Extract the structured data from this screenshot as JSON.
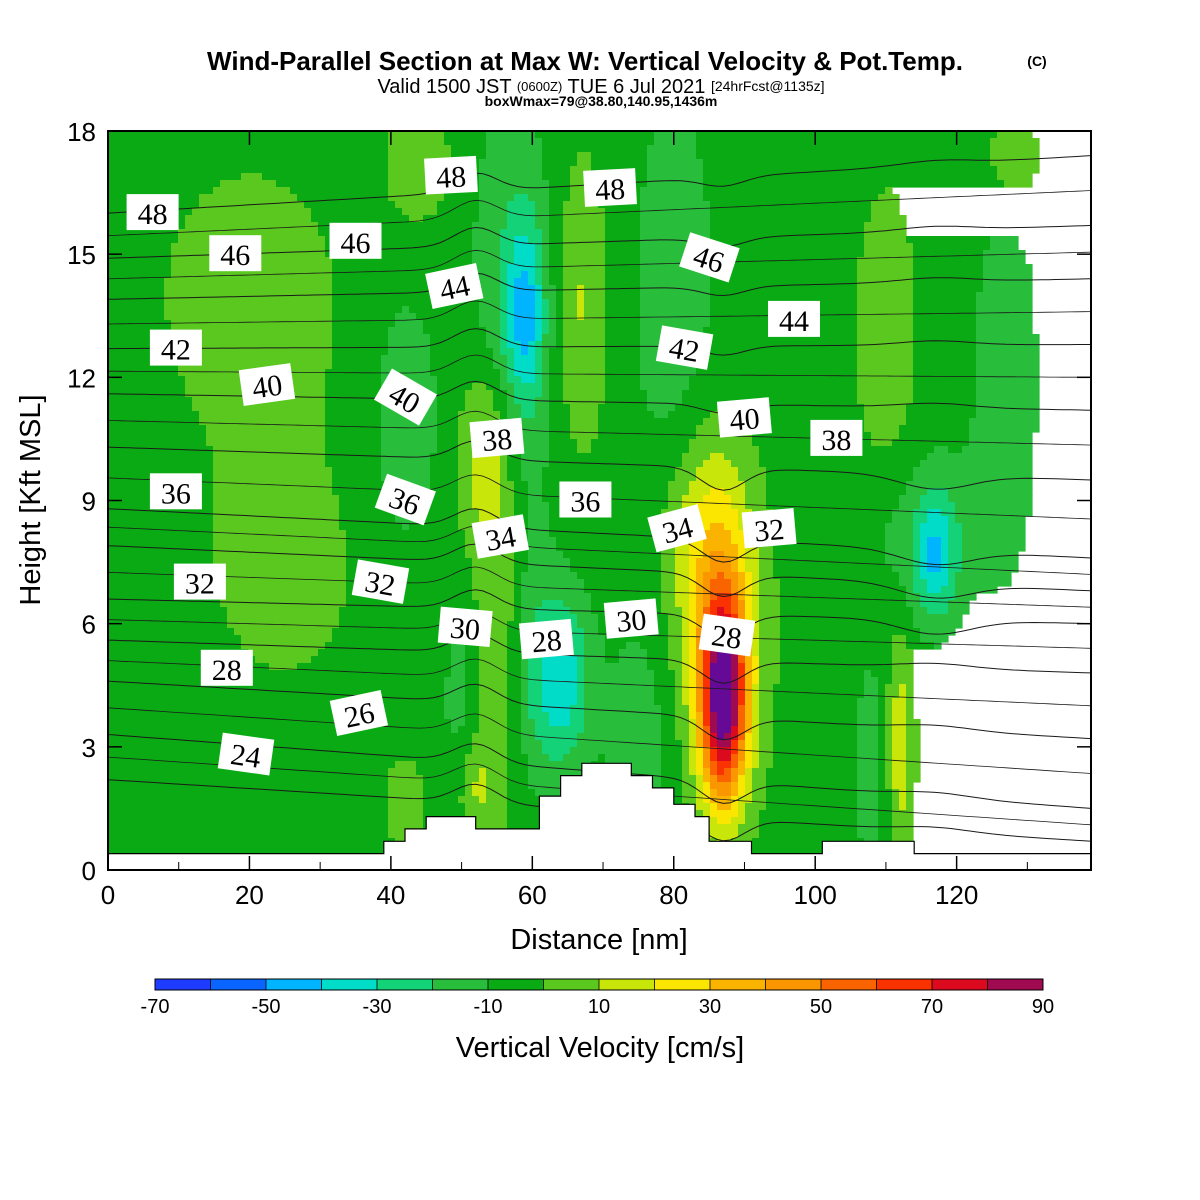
{
  "title_main": "Wind-Parallel Section at Max W: Vertical Velocity & Pot.Temp.",
  "title_mark": "(C)",
  "subtitle_pre": "Valid 1500 JST",
  "subtitle_utc": "(0600Z)",
  "subtitle_date": "TUE 6 Jul 2021",
  "subtitle_fcst": "[24hrFcst@1135z]",
  "subtitle_box": "boxWmax=79@38.80,140.95,1436m",
  "chart_data": {
    "type": "heatmap",
    "xlabel": "Distance [nm]",
    "ylabel": "Height [Kft MSL]",
    "xlim": [
      0,
      139
    ],
    "ylim": [
      0,
      18
    ],
    "xticks": [
      0,
      20,
      40,
      60,
      80,
      100,
      120
    ],
    "yticks": [
      0,
      3,
      6,
      9,
      12,
      15,
      18
    ],
    "colorbar": {
      "label": "Vertical Velocity [cm/s]",
      "levels": [
        -70,
        -60,
        -50,
        -40,
        -30,
        -20,
        -10,
        0,
        10,
        20,
        30,
        40,
        50,
        60,
        70,
        80,
        90
      ],
      "tick_labels": [
        "-70",
        "-50",
        "-30",
        "-10",
        "10",
        "30",
        "50",
        "70",
        "90"
      ],
      "colors": [
        "#1e3cff",
        "#0a64ff",
        "#00b4ff",
        "#00dcc8",
        "#14d278",
        "#28be3c",
        "#0aaa14",
        "#5ac81e",
        "#c8e60a",
        "#fae600",
        "#fab400",
        "#fa9600",
        "#fa6400",
        "#fa3200",
        "#dc0a1e",
        "#a00a50",
        "#640a96"
      ]
    },
    "background_value": -5,
    "w_features": [
      {
        "x": 87,
        "y": 4.2,
        "sx": 2.2,
        "sy": 1.7,
        "w": 88
      },
      {
        "x": 87,
        "y": 5.6,
        "sx": 4,
        "sy": 2.8,
        "w": 30
      },
      {
        "x": 84,
        "y": 8.2,
        "sx": 4,
        "sy": 1.8,
        "w": 18
      },
      {
        "x": 56,
        "y": 6.5,
        "sx": 3,
        "sy": 3.5,
        "w": 18
      },
      {
        "x": 53,
        "y": 10,
        "sx": 2.5,
        "sy": 1.5,
        "w": 18
      },
      {
        "x": 52,
        "y": 2,
        "sx": 2,
        "sy": 1,
        "w": 16
      },
      {
        "x": 67,
        "y": 13.8,
        "sx": 2.5,
        "sy": 2.5,
        "w": 16
      },
      {
        "x": 112,
        "y": 3,
        "sx": 1.4,
        "sy": 2,
        "w": 22
      },
      {
        "x": 110,
        "y": 13,
        "sx": 3,
        "sy": 2.5,
        "w": 14
      },
      {
        "x": 44,
        "y": 17.3,
        "sx": 3,
        "sy": 1,
        "w": 14
      },
      {
        "x": 128,
        "y": 17.3,
        "sx": 3,
        "sy": 1,
        "w": 12
      },
      {
        "x": 42,
        "y": 1.6,
        "sx": 2,
        "sy": 0.8,
        "w": 12
      },
      {
        "x": 20,
        "y": 14,
        "sx": 12,
        "sy": 3,
        "w": 8
      },
      {
        "x": 25,
        "y": 7,
        "sx": 10,
        "sy": 2.5,
        "w": 7
      },
      {
        "x": 64,
        "y": 4.6,
        "sx": 3,
        "sy": 1.5,
        "w": -32
      },
      {
        "x": 59,
        "y": 6,
        "sx": 2.5,
        "sy": 3,
        "w": -14
      },
      {
        "x": 59,
        "y": 13.5,
        "sx": 2,
        "sy": 1.6,
        "w": -30
      },
      {
        "x": 57,
        "y": 14,
        "sx": 4,
        "sy": 3.5,
        "w": -14
      },
      {
        "x": 42,
        "y": 11,
        "sx": 3,
        "sy": 2,
        "w": -16
      },
      {
        "x": 80,
        "y": 14,
        "sx": 4,
        "sy": 3.5,
        "w": -12
      },
      {
        "x": 117,
        "y": 7.6,
        "sx": 2,
        "sy": 1,
        "w": -28
      },
      {
        "x": 116,
        "y": 8.2,
        "sx": 6,
        "sy": 1.5,
        "w": -12
      },
      {
        "x": 127,
        "y": 12,
        "sx": 3,
        "sy": 3,
        "w": -14
      },
      {
        "x": 75,
        "y": 3,
        "sx": 3,
        "sy": 2,
        "w": -12
      },
      {
        "x": 50,
        "y": 4,
        "sx": 2,
        "sy": 2,
        "w": -10
      },
      {
        "x": 108,
        "y": 2.5,
        "sx": 2,
        "sy": 2,
        "w": -10
      }
    ],
    "theta_isentropes": [
      {
        "value": 24,
        "y_left": 2.2,
        "y_right": 0.7
      },
      {
        "value": 26,
        "y_left": 3.3,
        "y_right": 1.5
      },
      {
        "value": 28,
        "y_left": 4.6,
        "y_right": 3.2
      },
      {
        "value": 30,
        "y_left": 5.6,
        "y_right": 4.8
      },
      {
        "value": 32,
        "y_left": 6.6,
        "y_right": 6.0
      },
      {
        "value": 34,
        "y_left": 7.9,
        "y_right": 6.8
      },
      {
        "value": 36,
        "y_left": 8.8,
        "y_right": 7.6
      },
      {
        "value": 38,
        "y_left": 10.3,
        "y_right": 9.5
      },
      {
        "value": 40,
        "y_left": 11.6,
        "y_right": 11.2
      },
      {
        "value": 42,
        "y_left": 12.7,
        "y_right": 12.8
      },
      {
        "value": 44,
        "y_left": 13.9,
        "y_right": 14.4
      },
      {
        "value": 46,
        "y_left": 14.9,
        "y_right": 15.7
      },
      {
        "value": 48,
        "y_left": 16.0,
        "y_right": 17.4
      }
    ],
    "theta_labels": [
      {
        "text": "48",
        "x": 6.3,
        "y": 16.0,
        "rot": 0
      },
      {
        "text": "48",
        "x": 48.5,
        "y": 16.9,
        "rot": -3
      },
      {
        "text": "48",
        "x": 71,
        "y": 16.6,
        "rot": -3
      },
      {
        "text": "46",
        "x": 18,
        "y": 15.0,
        "rot": 0
      },
      {
        "text": "46",
        "x": 35,
        "y": 15.3,
        "rot": 0
      },
      {
        "text": "46",
        "x": 85,
        "y": 14.9,
        "rot": 18
      },
      {
        "text": "44",
        "x": 49,
        "y": 14.2,
        "rot": -12
      },
      {
        "text": "44",
        "x": 97,
        "y": 13.4,
        "rot": 0
      },
      {
        "text": "42",
        "x": 9.6,
        "y": 12.7,
        "rot": 0
      },
      {
        "text": "42",
        "x": 81.5,
        "y": 12.7,
        "rot": 10
      },
      {
        "text": "40",
        "x": 22.5,
        "y": 11.8,
        "rot": -8
      },
      {
        "text": "40",
        "x": 42,
        "y": 11.5,
        "rot": 30
      },
      {
        "text": "40",
        "x": 90,
        "y": 11.0,
        "rot": -5
      },
      {
        "text": "38",
        "x": 55,
        "y": 10.5,
        "rot": -5
      },
      {
        "text": "38",
        "x": 103,
        "y": 10.5,
        "rot": 0
      },
      {
        "text": "36",
        "x": 9.6,
        "y": 9.2,
        "rot": 0
      },
      {
        "text": "36",
        "x": 42,
        "y": 9.0,
        "rot": 20
      },
      {
        "text": "36",
        "x": 67.5,
        "y": 9.0,
        "rot": 0
      },
      {
        "text": "34",
        "x": 55.5,
        "y": 8.1,
        "rot": -10
      },
      {
        "text": "34",
        "x": 80.5,
        "y": 8.3,
        "rot": -15
      },
      {
        "text": "32",
        "x": 93.5,
        "y": 8.3,
        "rot": -5
      },
      {
        "text": "32",
        "x": 13,
        "y": 7.0,
        "rot": 0
      },
      {
        "text": "32",
        "x": 38.5,
        "y": 7.0,
        "rot": 10
      },
      {
        "text": "30",
        "x": 50.5,
        "y": 5.9,
        "rot": 5
      },
      {
        "text": "30",
        "x": 74,
        "y": 6.1,
        "rot": -5
      },
      {
        "text": "28",
        "x": 62,
        "y": 5.6,
        "rot": -5
      },
      {
        "text": "28",
        "x": 87.5,
        "y": 5.7,
        "rot": 8
      },
      {
        "text": "28",
        "x": 16.8,
        "y": 4.9,
        "rot": 0
      },
      {
        "text": "26",
        "x": 35.5,
        "y": 3.8,
        "rot": -12
      },
      {
        "text": "24",
        "x": 19.5,
        "y": 2.8,
        "rot": 8
      }
    ],
    "terrain": [
      [
        0,
        0.4
      ],
      [
        36,
        0.4
      ],
      [
        39,
        0.7
      ],
      [
        42,
        1.0
      ],
      [
        45,
        1.3
      ],
      [
        49,
        1.3
      ],
      [
        52,
        1.0
      ],
      [
        58,
        1.0
      ],
      [
        61,
        1.8
      ],
      [
        64,
        2.3
      ],
      [
        67,
        2.6
      ],
      [
        71,
        2.6
      ],
      [
        74,
        2.3
      ],
      [
        77,
        2.0
      ],
      [
        80,
        1.6
      ],
      [
        83,
        1.3
      ],
      [
        85,
        0.7
      ],
      [
        90,
        0.7
      ],
      [
        91,
        0.4
      ],
      [
        100,
        0.4
      ],
      [
        101,
        0.7
      ],
      [
        113,
        0.7
      ],
      [
        114,
        0.4
      ],
      [
        139,
        0.4
      ]
    ]
  }
}
